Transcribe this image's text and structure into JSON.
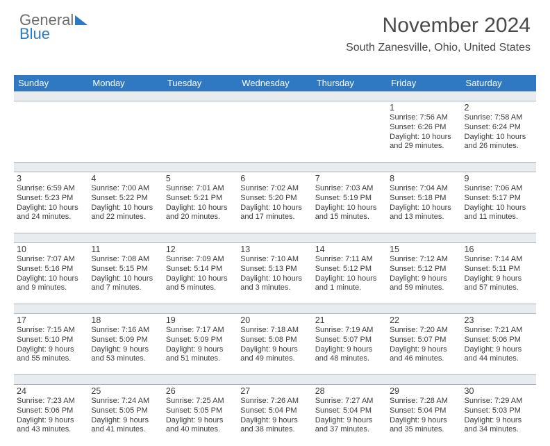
{
  "logo": {
    "line1": "General",
    "line2": "Blue"
  },
  "header": {
    "month_title": "November 2024",
    "location": "South Zanesville, Ohio, United States"
  },
  "style": {
    "header_bg": "#2e79c1",
    "header_text": "#ffffff",
    "spacer_bg": "#e9ecef",
    "spacer_border": "#a8b2bd",
    "text_color": "#3a3a3a",
    "logo_gray": "#6d6d6d",
    "logo_blue": "#2e79c1",
    "day_header_fontsize": 13,
    "daynum_fontsize": 12.5,
    "info_fontsize": 11
  },
  "day_names": [
    "Sunday",
    "Monday",
    "Tuesday",
    "Wednesday",
    "Thursday",
    "Friday",
    "Saturday"
  ],
  "weeks": [
    [
      null,
      null,
      null,
      null,
      null,
      {
        "n": "1",
        "sr": "7:56 AM",
        "ss": "6:26 PM",
        "dl": "10 hours and 29 minutes."
      },
      {
        "n": "2",
        "sr": "7:58 AM",
        "ss": "6:24 PM",
        "dl": "10 hours and 26 minutes."
      }
    ],
    [
      {
        "n": "3",
        "sr": "6:59 AM",
        "ss": "5:23 PM",
        "dl": "10 hours and 24 minutes."
      },
      {
        "n": "4",
        "sr": "7:00 AM",
        "ss": "5:22 PM",
        "dl": "10 hours and 22 minutes."
      },
      {
        "n": "5",
        "sr": "7:01 AM",
        "ss": "5:21 PM",
        "dl": "10 hours and 20 minutes."
      },
      {
        "n": "6",
        "sr": "7:02 AM",
        "ss": "5:20 PM",
        "dl": "10 hours and 17 minutes."
      },
      {
        "n": "7",
        "sr": "7:03 AM",
        "ss": "5:19 PM",
        "dl": "10 hours and 15 minutes."
      },
      {
        "n": "8",
        "sr": "7:04 AM",
        "ss": "5:18 PM",
        "dl": "10 hours and 13 minutes."
      },
      {
        "n": "9",
        "sr": "7:06 AM",
        "ss": "5:17 PM",
        "dl": "10 hours and 11 minutes."
      }
    ],
    [
      {
        "n": "10",
        "sr": "7:07 AM",
        "ss": "5:16 PM",
        "dl": "10 hours and 9 minutes."
      },
      {
        "n": "11",
        "sr": "7:08 AM",
        "ss": "5:15 PM",
        "dl": "10 hours and 7 minutes."
      },
      {
        "n": "12",
        "sr": "7:09 AM",
        "ss": "5:14 PM",
        "dl": "10 hours and 5 minutes."
      },
      {
        "n": "13",
        "sr": "7:10 AM",
        "ss": "5:13 PM",
        "dl": "10 hours and 3 minutes."
      },
      {
        "n": "14",
        "sr": "7:11 AM",
        "ss": "5:12 PM",
        "dl": "10 hours and 1 minute."
      },
      {
        "n": "15",
        "sr": "7:12 AM",
        "ss": "5:12 PM",
        "dl": "9 hours and 59 minutes."
      },
      {
        "n": "16",
        "sr": "7:14 AM",
        "ss": "5:11 PM",
        "dl": "9 hours and 57 minutes."
      }
    ],
    [
      {
        "n": "17",
        "sr": "7:15 AM",
        "ss": "5:10 PM",
        "dl": "9 hours and 55 minutes."
      },
      {
        "n": "18",
        "sr": "7:16 AM",
        "ss": "5:09 PM",
        "dl": "9 hours and 53 minutes."
      },
      {
        "n": "19",
        "sr": "7:17 AM",
        "ss": "5:09 PM",
        "dl": "9 hours and 51 minutes."
      },
      {
        "n": "20",
        "sr": "7:18 AM",
        "ss": "5:08 PM",
        "dl": "9 hours and 49 minutes."
      },
      {
        "n": "21",
        "sr": "7:19 AM",
        "ss": "5:07 PM",
        "dl": "9 hours and 48 minutes."
      },
      {
        "n": "22",
        "sr": "7:20 AM",
        "ss": "5:07 PM",
        "dl": "9 hours and 46 minutes."
      },
      {
        "n": "23",
        "sr": "7:21 AM",
        "ss": "5:06 PM",
        "dl": "9 hours and 44 minutes."
      }
    ],
    [
      {
        "n": "24",
        "sr": "7:23 AM",
        "ss": "5:06 PM",
        "dl": "9 hours and 43 minutes."
      },
      {
        "n": "25",
        "sr": "7:24 AM",
        "ss": "5:05 PM",
        "dl": "9 hours and 41 minutes."
      },
      {
        "n": "26",
        "sr": "7:25 AM",
        "ss": "5:05 PM",
        "dl": "9 hours and 40 minutes."
      },
      {
        "n": "27",
        "sr": "7:26 AM",
        "ss": "5:04 PM",
        "dl": "9 hours and 38 minutes."
      },
      {
        "n": "28",
        "sr": "7:27 AM",
        "ss": "5:04 PM",
        "dl": "9 hours and 37 minutes."
      },
      {
        "n": "29",
        "sr": "7:28 AM",
        "ss": "5:04 PM",
        "dl": "9 hours and 35 minutes."
      },
      {
        "n": "30",
        "sr": "7:29 AM",
        "ss": "5:03 PM",
        "dl": "9 hours and 34 minutes."
      }
    ]
  ],
  "labels": {
    "sunrise": "Sunrise: ",
    "sunset": "Sunset: ",
    "daylight": "Daylight: "
  }
}
